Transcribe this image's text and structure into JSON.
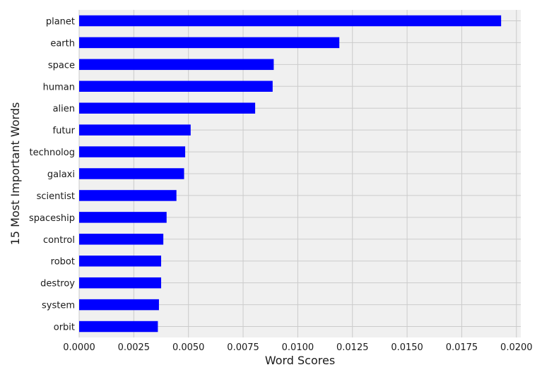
{
  "chart_data": {
    "type": "bar",
    "orientation": "horizontal",
    "title": "",
    "xlabel": "Word Scores",
    "ylabel": "15 Most Important Words",
    "categories": [
      "planet",
      "earth",
      "space",
      "human",
      "alien",
      "futur",
      "technolog",
      "galaxi",
      "scientist",
      "spaceship",
      "control",
      "robot",
      "destroy",
      "system",
      "orbit"
    ],
    "values": [
      0.0193,
      0.0119,
      0.0089,
      0.00885,
      0.00805,
      0.0051,
      0.00485,
      0.0048,
      0.00445,
      0.004,
      0.00385,
      0.00375,
      0.00375,
      0.00365,
      0.0036
    ],
    "xlim": [
      0,
      0.0202
    ],
    "x_ticks": [
      0,
      0.0025,
      0.005,
      0.0075,
      0.01,
      0.0125,
      0.015,
      0.0175,
      0.02
    ],
    "x_tick_labels": [
      "0.0000",
      "0.0025",
      "0.0050",
      "0.0075",
      "0.0100",
      "0.0125",
      "0.0150",
      "0.0175",
      "0.0200"
    ],
    "grid": true,
    "bar_color": "#0000ff",
    "plot_background": "#f0f0f0",
    "grid_color": "#cbcbcb"
  }
}
